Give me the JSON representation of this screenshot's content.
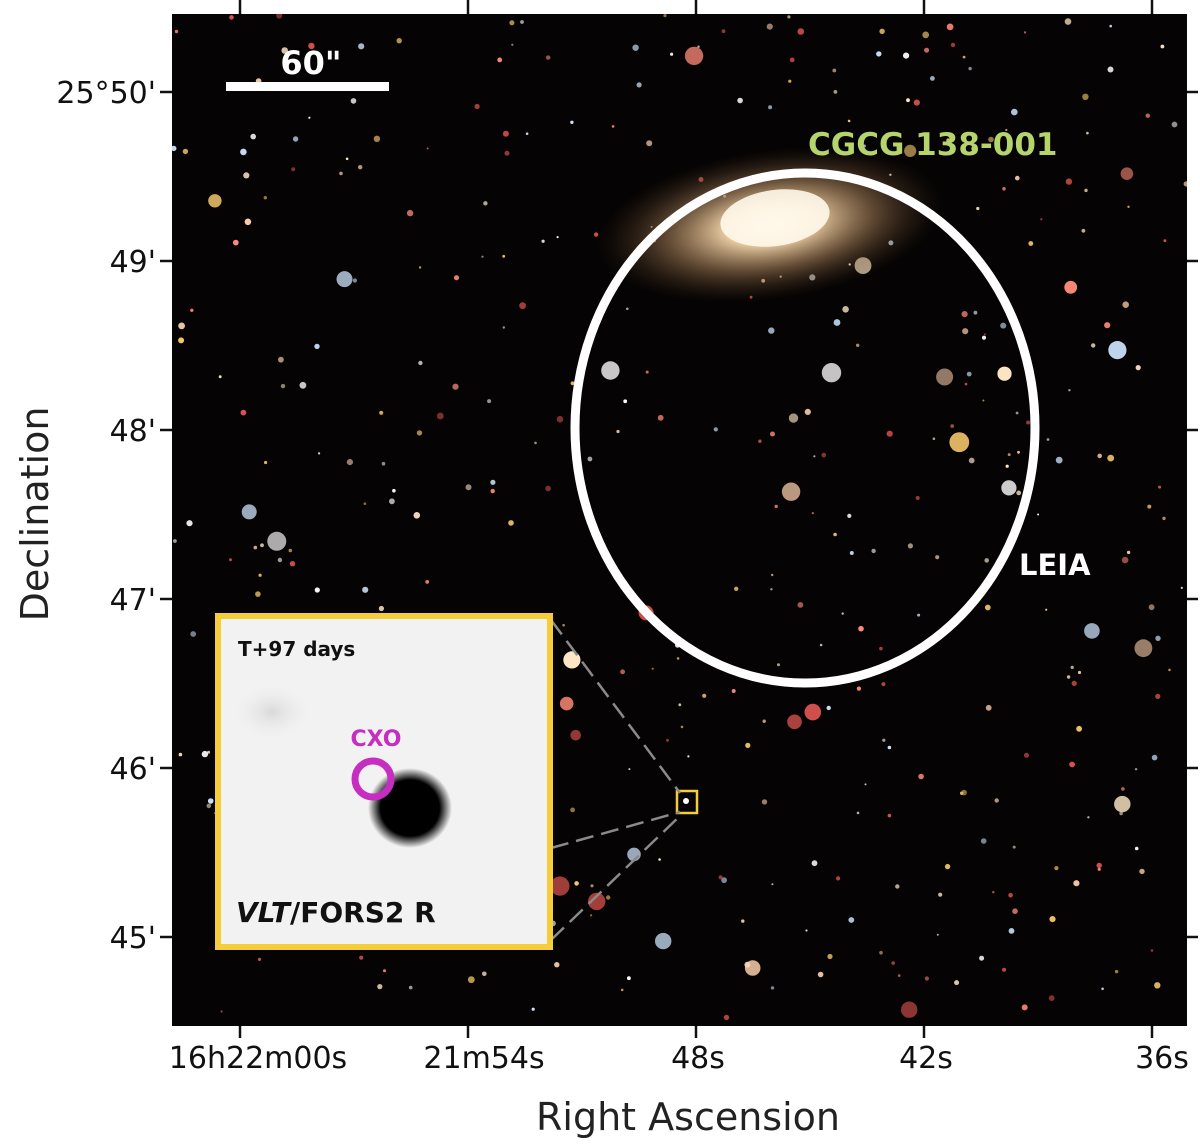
{
  "figure": {
    "axes": {
      "x_title": "Right Ascension",
      "y_title": "Declination",
      "x_ticks": [
        "16h22m00s",
        "21m54s",
        "48s",
        "42s",
        "36s"
      ],
      "y_ticks": [
        "25°50'",
        "49'",
        "48'",
        "47'",
        "46'",
        "45'"
      ]
    },
    "scale_bar_label": "60\"",
    "galaxy_label": "CGCG 138-001",
    "region_label": "LEIA",
    "inset": {
      "epoch_label": "T+97 days",
      "source_label": "CXO",
      "instrument_italic": "VLT",
      "instrument_rest": "/FORS2 R"
    },
    "colors": {
      "galaxy_label": "#b5d46c",
      "inset_frame": "#f5cc3a",
      "source_circle": "#c52ec0",
      "ellipse": "#ffffff",
      "sky": "#050303"
    }
  }
}
